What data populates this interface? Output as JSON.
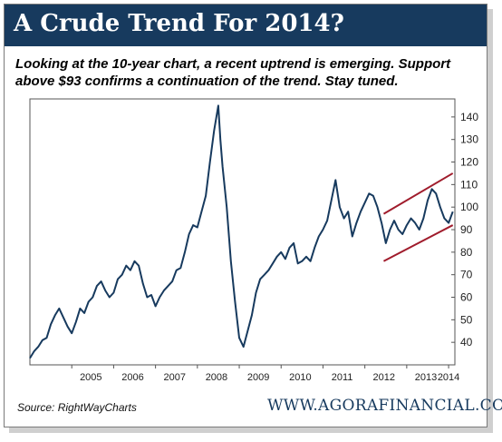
{
  "title": "A Crude Trend For 2014?",
  "subtitle": "Looking at the 10-year chart, a recent uptrend is emerging.  Support above $93 confirms a continuation of the trend. Stay tuned.",
  "source": "Source: RightWayCharts",
  "website": "WWW.AGORAFINANCIAL.COM",
  "colors": {
    "title_bar": "#173a5e",
    "line": "#173a5e",
    "channel": "#a01c2c"
  },
  "chart_data": {
    "type": "line",
    "title": "",
    "xlabel": "",
    "ylabel": "",
    "xlim": [
      2004.0,
      2014.15
    ],
    "ylim": [
      30,
      148
    ],
    "x_ticks": [
      "2005",
      "2006",
      "2007",
      "2008",
      "2009",
      "2010",
      "2011",
      "2012",
      "2013",
      "2014"
    ],
    "y_ticks": [
      40,
      50,
      60,
      70,
      80,
      90,
      100,
      110,
      120,
      130,
      140
    ],
    "grid": false,
    "series": [
      {
        "name": "",
        "x": [
          2004.0,
          2004.1,
          2004.2,
          2004.3,
          2004.4,
          2004.5,
          2004.6,
          2004.7,
          2004.8,
          2004.9,
          2005.0,
          2005.1,
          2005.2,
          2005.3,
          2005.4,
          2005.5,
          2005.6,
          2005.7,
          2005.8,
          2005.9,
          2006.0,
          2006.1,
          2006.2,
          2006.3,
          2006.4,
          2006.5,
          2006.6,
          2006.7,
          2006.8,
          2006.9,
          2007.0,
          2007.1,
          2007.2,
          2007.3,
          2007.4,
          2007.5,
          2007.6,
          2007.7,
          2007.8,
          2007.9,
          2008.0,
          2008.1,
          2008.2,
          2008.3,
          2008.4,
          2008.5,
          2008.55,
          2008.6,
          2008.7,
          2008.8,
          2008.9,
          2009.0,
          2009.1,
          2009.2,
          2009.3,
          2009.4,
          2009.5,
          2009.6,
          2009.7,
          2009.8,
          2009.9,
          2010.0,
          2010.1,
          2010.2,
          2010.3,
          2010.4,
          2010.5,
          2010.6,
          2010.7,
          2010.8,
          2010.9,
          2011.0,
          2011.1,
          2011.2,
          2011.3,
          2011.4,
          2011.5,
          2011.6,
          2011.7,
          2011.8,
          2011.9,
          2012.0,
          2012.1,
          2012.2,
          2012.3,
          2012.4,
          2012.5,
          2012.6,
          2012.7,
          2012.8,
          2012.9,
          2013.0,
          2013.1,
          2013.2,
          2013.3,
          2013.4,
          2013.5,
          2013.6,
          2013.7,
          2013.8,
          2013.9,
          2014.0,
          2014.1
        ],
        "values": [
          33,
          36,
          38,
          41,
          42,
          48,
          52,
          55,
          51,
          47,
          44,
          49,
          55,
          53,
          58,
          60,
          65,
          67,
          63,
          60,
          62,
          68,
          70,
          74,
          72,
          76,
          74,
          66,
          60,
          61,
          56,
          60,
          63,
          65,
          67,
          72,
          73,
          80,
          88,
          92,
          91,
          98,
          105,
          120,
          134,
          145,
          130,
          118,
          100,
          76,
          58,
          42,
          38,
          45,
          52,
          62,
          68,
          70,
          72,
          75,
          78,
          80,
          77,
          82,
          84,
          75,
          76,
          78,
          76,
          82,
          87,
          90,
          94,
          103,
          112,
          100,
          95,
          98,
          87,
          93,
          98,
          102,
          106,
          105,
          100,
          93,
          84,
          90,
          94,
          90,
          88,
          92,
          95,
          93,
          90,
          95,
          103,
          108,
          106,
          100,
          95,
          93,
          98
        ]
      }
    ],
    "trend_channel": {
      "upper": [
        [
          2012.45,
          97
        ],
        [
          2014.1,
          115
        ]
      ],
      "lower": [
        [
          2012.45,
          76
        ],
        [
          2014.1,
          92
        ]
      ]
    }
  }
}
